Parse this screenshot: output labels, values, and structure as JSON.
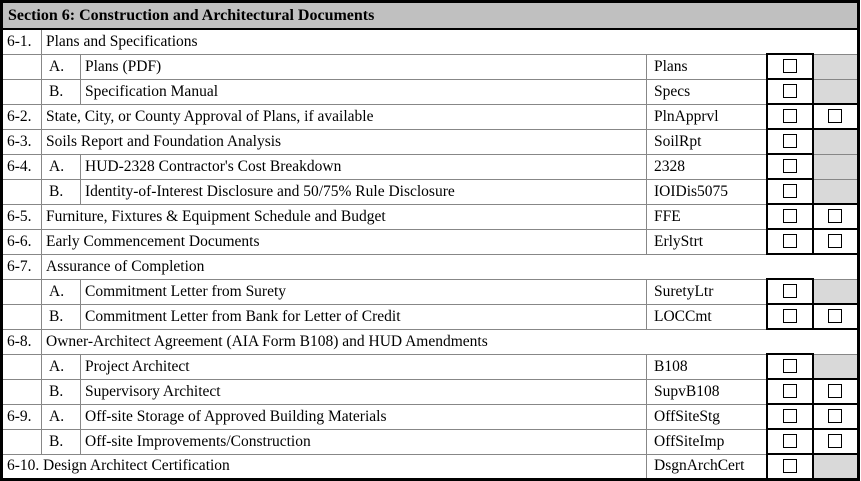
{
  "table": {
    "header": "Section 6: Construction and Architectural Documents",
    "rows": [
      {
        "layout": "section",
        "num": "6-1.",
        "letter": "",
        "desc": "Plans and Specifications",
        "code": "",
        "cb1": null,
        "cb2": null
      },
      {
        "layout": "item",
        "num": "",
        "letter": "A.",
        "desc": "Plans (PDF)",
        "code": "Plans",
        "cb1": "box",
        "cb2": "gray"
      },
      {
        "layout": "item",
        "num": "",
        "letter": "B.",
        "desc": "Specification Manual",
        "code": "Specs",
        "cb1": "box",
        "cb2": "gray"
      },
      {
        "layout": "item-merged",
        "num": "6-2.",
        "letter": "",
        "desc": "State, City, or County Approval of Plans, if available",
        "code": "PlnApprvl",
        "cb1": "box",
        "cb2": "box"
      },
      {
        "layout": "item-merged",
        "num": "6-3.",
        "letter": "",
        "desc": "Soils Report and Foundation Analysis",
        "code": "SoilRpt",
        "cb1": "box",
        "cb2": "gray"
      },
      {
        "layout": "item",
        "num": "6-4.",
        "letter": "A.",
        "desc": "HUD-2328 Contractor's Cost Breakdown",
        "code": "2328",
        "cb1": "box",
        "cb2": "gray"
      },
      {
        "layout": "item",
        "num": "",
        "letter": "B.",
        "desc": "Identity-of-Interest Disclosure and 50/75% Rule Disclosure",
        "code": "IOIDis5075",
        "cb1": "box",
        "cb2": "gray"
      },
      {
        "layout": "item-merged",
        "num": "6-5.",
        "letter": "",
        "desc": "Furniture, Fixtures & Equipment Schedule and Budget",
        "code": "FFE",
        "cb1": "box",
        "cb2": "box"
      },
      {
        "layout": "item-merged",
        "num": "6-6.",
        "letter": "",
        "desc": "Early Commencement Documents",
        "code": "ErlyStrt",
        "cb1": "box",
        "cb2": "box"
      },
      {
        "layout": "section",
        "num": "6-7.",
        "letter": "",
        "desc": "Assurance of Completion",
        "code": "",
        "cb1": null,
        "cb2": null
      },
      {
        "layout": "item",
        "num": "",
        "letter": "A.",
        "desc": "Commitment Letter from Surety",
        "code": "SuretyLtr",
        "cb1": "box",
        "cb2": "gray"
      },
      {
        "layout": "item",
        "num": "",
        "letter": "B.",
        "desc": "Commitment Letter from Bank for Letter of Credit",
        "code": "LOCCmt",
        "cb1": "box",
        "cb2": "box"
      },
      {
        "layout": "section",
        "num": "6-8.",
        "letter": "",
        "desc": "Owner-Architect Agreement (AIA Form B108) and HUD Amendments",
        "code": "",
        "cb1": null,
        "cb2": null
      },
      {
        "layout": "item",
        "num": "",
        "letter": "A.",
        "desc": "Project Architect",
        "code": "B108",
        "cb1": "box",
        "cb2": "gray"
      },
      {
        "layout": "item",
        "num": "",
        "letter": "B.",
        "desc": "Supervisory Architect",
        "code": "SupvB108",
        "cb1": "box",
        "cb2": "box"
      },
      {
        "layout": "item",
        "num": "6-9.",
        "letter": "A.",
        "desc": "Off-site Storage of Approved Building Materials",
        "code": "OffSiteStg",
        "cb1": "box",
        "cb2": "box"
      },
      {
        "layout": "item",
        "num": "",
        "letter": "B.",
        "desc": "Off-site Improvements/Construction",
        "code": "OffSiteImp",
        "cb1": "box",
        "cb2": "box"
      },
      {
        "layout": "item-numdesc",
        "num": "6-10.",
        "letter": "",
        "desc": "Design Architect Certification",
        "code": "DsgnArchCert",
        "cb1": "box",
        "cb2": "gray"
      }
    ]
  },
  "colors": {
    "header_bg": "#c0c0c0",
    "na_cell_bg": "#d9d9d9",
    "grid_line": "#878787",
    "checkbox_border": "#000000",
    "text": "#000000"
  }
}
